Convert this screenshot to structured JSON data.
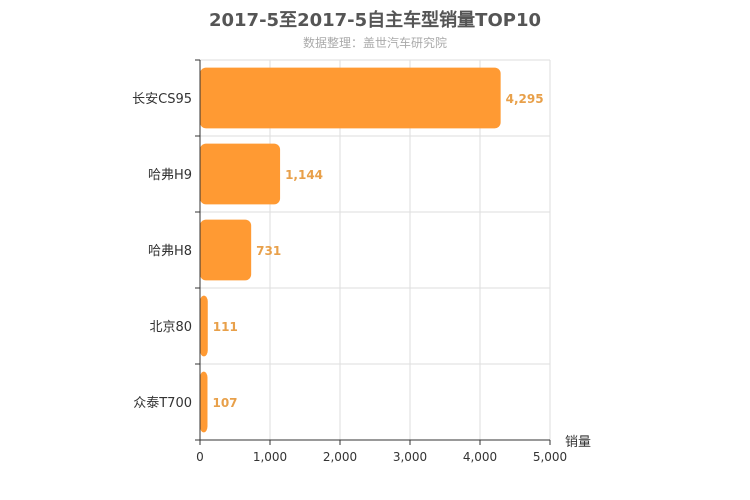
{
  "chart_data": {
    "type": "bar",
    "orientation": "horizontal",
    "title": "2017-5至2017-5自主车型销量TOP10",
    "subtitle": "数据整理：盖世汽车研究院",
    "categories": [
      "长安CS95",
      "哈弗H9",
      "哈弗H8",
      "北京80",
      "众泰T700"
    ],
    "series": [
      {
        "values": [
          4295,
          1144,
          731,
          111,
          107
        ]
      }
    ],
    "data_labels": [
      "4,295",
      "1,144",
      "731",
      "111",
      "107"
    ],
    "xlabel": "销量",
    "ylabel": "",
    "xlim": [
      0,
      5000
    ],
    "x_ticks": [
      0,
      1000,
      2000,
      3000,
      4000,
      5000
    ],
    "x_tick_labels": [
      "0",
      "1,000",
      "2,000",
      "3,000",
      "4,000",
      "5,000"
    ],
    "grid": true,
    "legend": "none",
    "colors": {
      "bar": "#ff9a33",
      "value_label": "#e8a04a",
      "grid": "#dddddd",
      "axis": "#333333"
    }
  }
}
